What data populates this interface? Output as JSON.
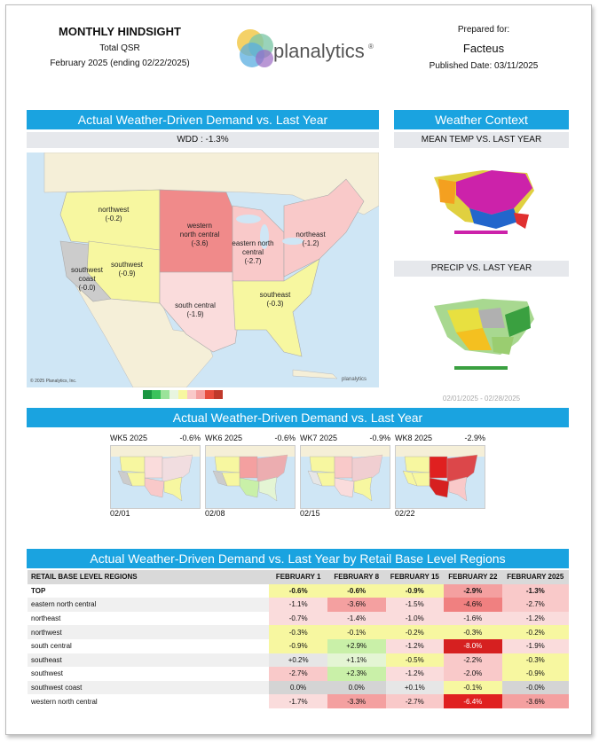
{
  "header": {
    "title": "MONTHLY HINDSIGHT",
    "subtitle": "Total QSR",
    "period": "February 2025 (ending 02/22/2025)",
    "logo_text": "planalytics",
    "logo_mark": "®",
    "prepared_label": "Prepared for:",
    "client": "Facteus",
    "published": "Published Date: 03/11/2025"
  },
  "main_map": {
    "bar_title": "Actual Weather-Driven Demand vs. Last Year",
    "wdd": "WDD : -1.3%",
    "copyright": "© 2025 Planalytics, Inc.",
    "regions": [
      {
        "name": "northwest",
        "value": "(-0.2)"
      },
      {
        "name": "western north central",
        "value": "(-3.6)"
      },
      {
        "name": "eastern north central",
        "value": "(-2.7)"
      },
      {
        "name": "northeast",
        "value": "(-1.2)"
      },
      {
        "name": "southwest coast",
        "value": "(-0.0)"
      },
      {
        "name": "southwest",
        "value": "(-0.9)"
      },
      {
        "name": "south central",
        "value": "(-1.9)"
      },
      {
        "name": "southeast",
        "value": "(-0.3)"
      }
    ],
    "legend_colors": [
      "#1a9641",
      "#3cc25c",
      "#9be39a",
      "#e8f5e0",
      "#f7f7a0",
      "#f9c9c9",
      "#f4a0a0",
      "#e74c3c",
      "#c0392b"
    ]
  },
  "weather_context": {
    "bar_title": "Weather Context",
    "temp_label": "MEAN TEMP VS. LAST YEAR",
    "precip_label": "PRECIP VS. LAST YEAR",
    "date_range": "02/01/2025 - 02/28/2025"
  },
  "weekly": {
    "bar_title": "Actual Weather-Driven Demand vs. Last Year",
    "weeks": [
      {
        "label": "WK5 2025",
        "value": "-0.6%",
        "date": "02/01"
      },
      {
        "label": "WK6 2025",
        "value": "-0.6%",
        "date": "02/08"
      },
      {
        "label": "WK7 2025",
        "value": "-0.9%",
        "date": "02/15"
      },
      {
        "label": "WK8 2025",
        "value": "-2.9%",
        "date": "02/22"
      }
    ]
  },
  "table": {
    "bar_title": "Actual Weather-Driven Demand vs. Last Year by Retail Base Level Regions",
    "headers": [
      "RETAIL BASE LEVEL REGIONS",
      "FEBRUARY 1",
      "FEBRUARY 8",
      "FEBRUARY 15",
      "FEBRUARY 22",
      "FEBRUARY 2025"
    ],
    "rows": [
      {
        "name": "TOP",
        "values": [
          "-0.6%",
          "-0.6%",
          "-0.9%",
          "-2.9%",
          "-1.3%"
        ],
        "colors": [
          "#f7f7a0",
          "#f7f7a0",
          "#f7f7a0",
          "#f4a0a0",
          "#f9c9c9"
        ],
        "bold": true
      },
      {
        "name": "eastern north central",
        "values": [
          "-1.1%",
          "-3.6%",
          "-1.5%",
          "-4.6%",
          "-2.7%"
        ],
        "colors": [
          "#fadcdc",
          "#f4a0a0",
          "#fadcdc",
          "#f08080",
          "#f9c9c9"
        ]
      },
      {
        "name": "northeast",
        "values": [
          "-0.7%",
          "-1.4%",
          "-1.0%",
          "-1.6%",
          "-1.2%"
        ],
        "colors": [
          "#fadcdc",
          "#fadcdc",
          "#fadcdc",
          "#fadcdc",
          "#fadcdc"
        ]
      },
      {
        "name": "northwest",
        "values": [
          "-0.3%",
          "-0.1%",
          "-0.2%",
          "-0.3%",
          "-0.2%"
        ],
        "colors": [
          "#f7f7a0",
          "#f7f7a0",
          "#f7f7a0",
          "#f7f7a0",
          "#f7f7a0"
        ]
      },
      {
        "name": "south central",
        "values": [
          "-0.9%",
          "+2.9%",
          "-1.2%",
          "-8.0%",
          "-1.9%"
        ],
        "colors": [
          "#f7f7a0",
          "#c9f0a8",
          "#fadcdc",
          "#d62020",
          "#fadcdc"
        ]
      },
      {
        "name": "southeast",
        "values": [
          "+0.2%",
          "+1.1%",
          "-0.5%",
          "-2.2%",
          "-0.3%"
        ],
        "colors": [
          "#e6e6e6",
          "#e4f5d4",
          "#f7f7a0",
          "#f9c9c9",
          "#f7f7a0"
        ]
      },
      {
        "name": "southwest",
        "values": [
          "-2.7%",
          "+2.3%",
          "-1.2%",
          "-2.0%",
          "-0.9%"
        ],
        "colors": [
          "#f9c9c9",
          "#c9f0a8",
          "#fadcdc",
          "#f9c9c9",
          "#f7f7a0"
        ]
      },
      {
        "name": "southwest coast",
        "values": [
          "0.0%",
          "0.0%",
          "+0.1%",
          "-0.1%",
          "-0.0%"
        ],
        "colors": [
          "#d4d4d4",
          "#d4d4d4",
          "#e6e6e6",
          "#f7f7a0",
          "#d4d4d4"
        ]
      },
      {
        "name": "western north central",
        "values": [
          "-1.7%",
          "-3.3%",
          "-2.7%",
          "-6.4%",
          "-3.6%"
        ],
        "colors": [
          "#fadcdc",
          "#f4a0a0",
          "#f9c9c9",
          "#e02020",
          "#f4a0a0"
        ]
      }
    ]
  }
}
